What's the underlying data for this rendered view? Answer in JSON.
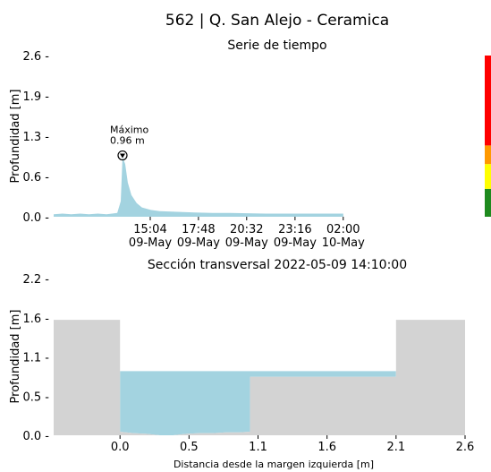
{
  "title": "562 | Q. San Alejo - Ceramica",
  "chart_data": [
    {
      "type": "area",
      "subtitle": "Serie de tiempo",
      "ylabel": "Profundidad [m]",
      "ylim": [
        0,
        2.6
      ],
      "yticks": [
        "0.0",
        "0.6",
        "1.3",
        "1.9",
        "2.6"
      ],
      "ytick_values": [
        0,
        0.65,
        1.3,
        1.95,
        2.6
      ],
      "xlim_hours": [
        0,
        23.3
      ],
      "xticks": [
        {
          "h": 5.47,
          "time": "15:04",
          "date": "09-May"
        },
        {
          "h": 8.2,
          "time": "17:48",
          "date": "09-May"
        },
        {
          "h": 10.93,
          "time": "20:32",
          "date": "09-May"
        },
        {
          "h": 13.67,
          "time": "23:16",
          "date": "09-May"
        },
        {
          "h": 16.4,
          "time": "02:00",
          "date": "10-May"
        }
      ],
      "series": [
        {
          "x": [
            0,
            0.5,
            1.0,
            1.5,
            2.0,
            2.5,
            3.0,
            3.3,
            3.6,
            3.8,
            3.9,
            4.05,
            4.2,
            4.4,
            4.7,
            5.0,
            5.5,
            6.0,
            7.0,
            8.0,
            9.0,
            10.0,
            12.0,
            14.0,
            16.4
          ],
          "y": [
            0.04,
            0.05,
            0.04,
            0.05,
            0.04,
            0.05,
            0.04,
            0.05,
            0.06,
            0.25,
            0.96,
            0.85,
            0.55,
            0.35,
            0.22,
            0.15,
            0.11,
            0.09,
            0.08,
            0.07,
            0.06,
            0.06,
            0.05,
            0.05,
            0.05
          ],
          "color": "#a3d3e0"
        }
      ],
      "annotation": {
        "label": "Máximo",
        "value": "0.96 m",
        "x": 3.9,
        "y": 0.96
      },
      "level_bar": [
        {
          "from": 0,
          "to": 0.45,
          "color": "#1e8a1e"
        },
        {
          "from": 0.45,
          "to": 0.85,
          "color": "#ffff00"
        },
        {
          "from": 0.85,
          "to": 1.15,
          "color": "#ff9900"
        },
        {
          "from": 1.15,
          "to": 2.6,
          "color": "#ff0000"
        }
      ]
    },
    {
      "type": "area",
      "subtitle": "Sección transversal 2022-05-09 14:10:00",
      "ylabel": "Profundidad [m]",
      "xlabel": "Distancia desde la margen izquierda [m]",
      "ylim": [
        0,
        2.2
      ],
      "xlim": [
        -0.5,
        2.6
      ],
      "yticks": [
        "0.0",
        "0.5",
        "1.1",
        "1.6",
        "2.2"
      ],
      "ytick_values": [
        0,
        0.55,
        1.1,
        1.65,
        2.2
      ],
      "xticks": [
        "0.0",
        "0.5",
        "1.1",
        "1.6",
        "2.1",
        "2.6"
      ],
      "xtick_values": [
        0,
        0.52,
        1.04,
        1.56,
        2.08,
        2.6
      ],
      "ground": {
        "x": [
          -0.5,
          0.0,
          0.0,
          0.1,
          0.2,
          0.3,
          0.4,
          0.5,
          0.6,
          0.7,
          0.8,
          0.9,
          0.98,
          0.98,
          2.08,
          2.08,
          2.6
        ],
        "y": [
          1.62,
          1.62,
          0.05,
          0.03,
          0.02,
          0.0,
          0.0,
          0.02,
          0.03,
          0.03,
          0.04,
          0.04,
          0.05,
          0.82,
          0.82,
          1.62,
          1.62
        ],
        "color": "#d3d3d3"
      },
      "water_level": 0.9,
      "water_color": "#a3d3e0"
    }
  ]
}
